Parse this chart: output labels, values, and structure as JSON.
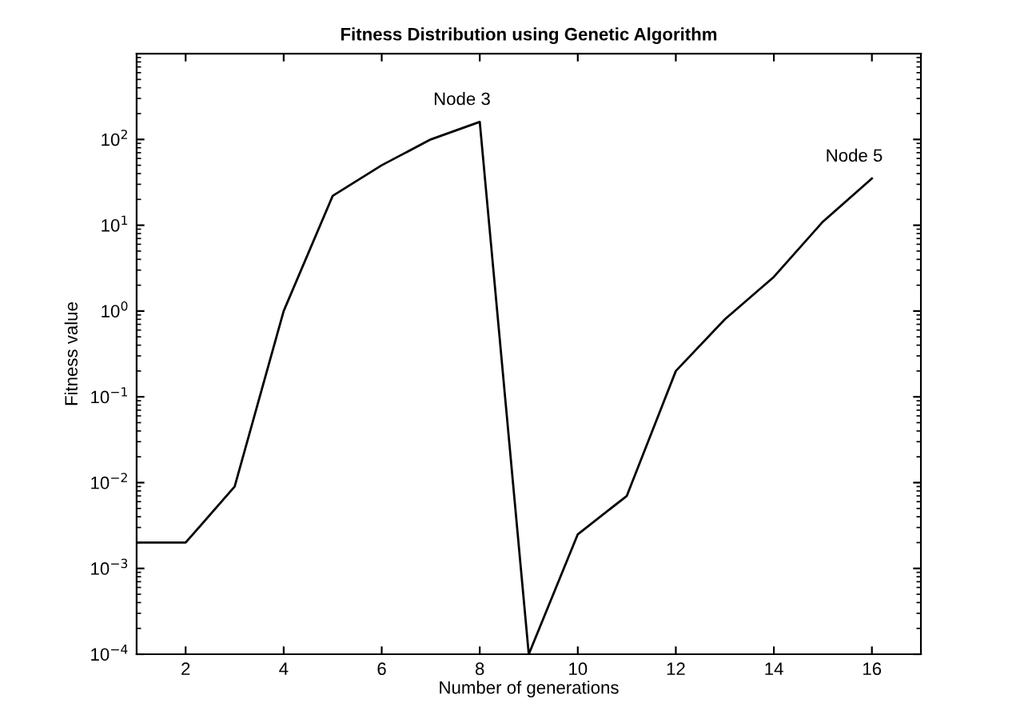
{
  "chart_data": {
    "type": "line",
    "title": "Fitness Distribution using Genetic Algorithm",
    "xlabel": "Number of generations",
    "ylabel": "Fitness value",
    "x": [
      1,
      2,
      3,
      4,
      5,
      6,
      7,
      8,
      9,
      10,
      11,
      12,
      13,
      14,
      15,
      16
    ],
    "series": [
      {
        "color": "#000000",
        "values": [
          0.002,
          0.002,
          0.009,
          1.0,
          22,
          50,
          100,
          160,
          0.0001,
          0.0025,
          0.007,
          0.2,
          0.8,
          2.5,
          11,
          35
        ]
      }
    ],
    "log": "y",
    "xlim": [
      1,
      17
    ],
    "xticks": [
      2,
      4,
      6,
      8,
      10,
      12,
      14,
      16
    ],
    "ylim": [
      0.0001,
      1000
    ],
    "yticks": [
      {
        "value": 0.0001,
        "label": "10$^{−4}$"
      },
      {
        "value": 0.001,
        "label": "10$^{−3}$"
      },
      {
        "value": 0.01,
        "label": "10$^{−2}$"
      },
      {
        "value": 0.1,
        "label": "10$^{−1}$"
      },
      {
        "value": 1,
        "label": "10$^{0}$"
      },
      {
        "value": 10,
        "label": "10$^{1}$"
      },
      {
        "value": 100,
        "label": "10$^{2}$"
      }
    ],
    "annotations": [
      {
        "text": "Node 3",
        "x": 8,
        "y": 160
      },
      {
        "text": "Node 5",
        "x": 16,
        "y": 35
      }
    ],
    "grid": false,
    "legend": false,
    "marker": "none",
    "line_style": "solid"
  }
}
